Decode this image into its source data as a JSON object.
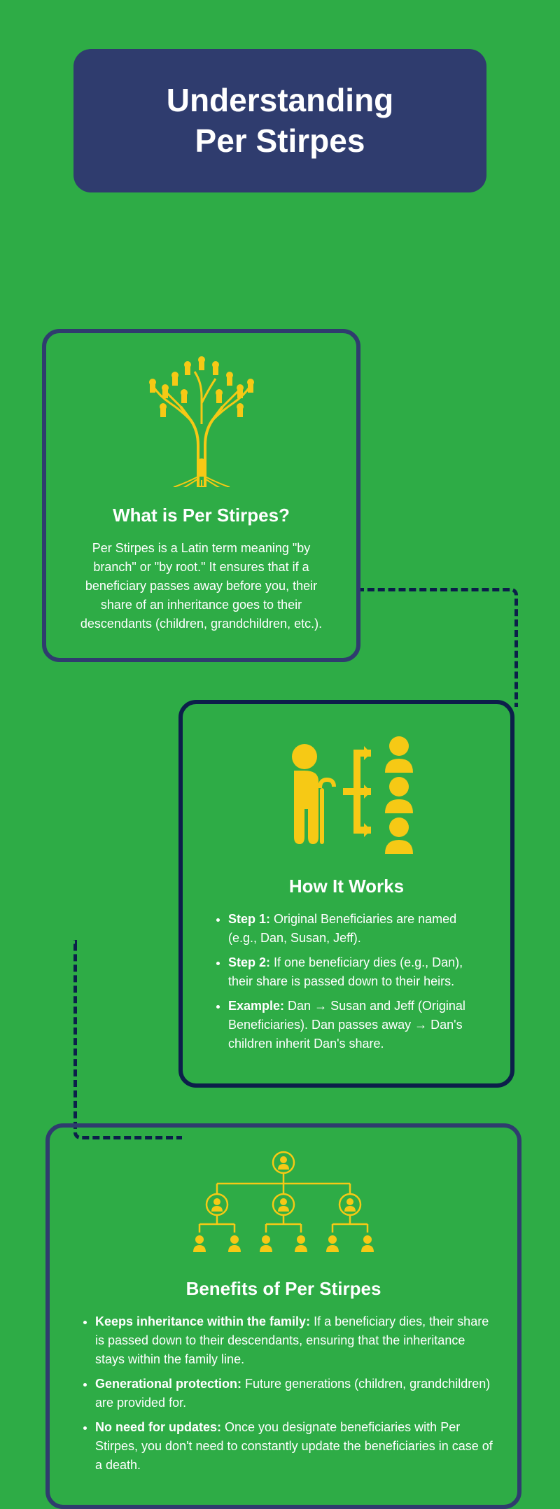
{
  "title_line1": "Understanding",
  "title_line2": "Per Stirpes",
  "colors": {
    "background": "#2eac46",
    "title_box": "#2f3c6e",
    "border1": "#2f3c6e",
    "border2": "#0c1f4a",
    "border3": "#2f3c6e",
    "icon": "#f6c915",
    "text": "#ffffff",
    "connector": "#0c1f4a"
  },
  "section1": {
    "title": "What is Per Stirpes?",
    "body": "Per Stirpes is a Latin term meaning \"by branch\" or \"by root.\" It ensures that if a beneficiary passes away before you, their share of an inheritance goes to their descendants (children, grandchildren, etc.).",
    "icon": "family-tree-icon"
  },
  "section2": {
    "title": "How It Works",
    "icon": "inheritance-flow-icon",
    "items": [
      {
        "bold": "Step 1:",
        "text": " Original Beneficiaries are named (e.g., Dan, Susan, Jeff)."
      },
      {
        "bold": "Step 2:",
        "text": " If one beneficiary dies (e.g., Dan), their share is passed down to their heirs."
      },
      {
        "bold": "Example:",
        "text": " Dan → Susan and Jeff (Original Beneficiaries). Dan passes away → Dan's children inherit Dan's share."
      }
    ]
  },
  "section3": {
    "title": "Benefits of Per Stirpes",
    "icon": "org-chart-icon",
    "items": [
      {
        "bold": "Keeps inheritance within the family:",
        "text": " If a beneficiary dies, their share is passed down to their descendants, ensuring that the inheritance stays within the family line."
      },
      {
        "bold": "Generational protection:",
        "text": " Future generations (children, grandchildren) are provided for."
      },
      {
        "bold": "No need for updates:",
        "text": " Once you designate beneficiaries with Per Stirpes, you don't need to constantly update the beneficiaries in case of a death."
      }
    ]
  }
}
